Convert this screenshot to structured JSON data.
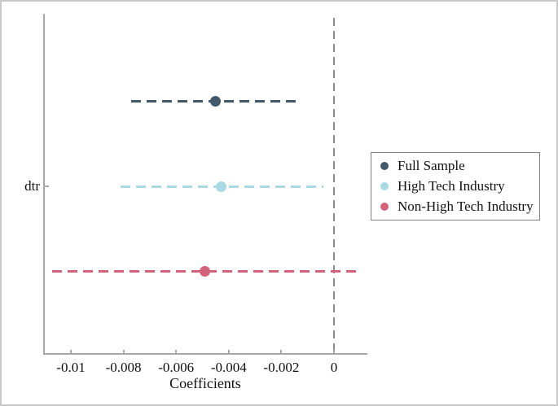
{
  "chart_data": {
    "type": "scatter",
    "subtype": "coefficient-plot",
    "title": "",
    "xlabel": "Coefficients",
    "ylabel": "",
    "y_categories": [
      "dtr"
    ],
    "xlim": [
      -0.0111,
      0.0013
    ],
    "xticks": [
      -0.01,
      -0.008,
      -0.006,
      -0.004,
      -0.002,
      0
    ],
    "xtick_labels": [
      "-0.01",
      "-0.008",
      "-0.006",
      "-0.004",
      "-0.002",
      "0"
    ],
    "reference_line_x": 0,
    "grid": false,
    "legend_position": "right-center",
    "series": [
      {
        "name": "Full Sample",
        "y_category": "dtr",
        "estimate": -0.0045,
        "ci_low": -0.0077,
        "ci_high": -0.0014,
        "color": "#41596b"
      },
      {
        "name": "High Tech Industry",
        "y_category": "dtr",
        "estimate": -0.0043,
        "ci_low": -0.0081,
        "ci_high": -0.0004,
        "color": "#a9dae3"
      },
      {
        "name": "Non-High Tech Industry",
        "y_category": "dtr",
        "estimate": -0.0049,
        "ci_low": -0.0107,
        "ci_high": 0.0009,
        "color": "#d2637a"
      }
    ]
  },
  "axis": {
    "x_label": "Coefficients",
    "y_tick_label": "dtr"
  },
  "colors": {
    "axis_line": "#a8a8a8",
    "reference_line": "#8d8d8d",
    "text": "#111111",
    "legend_border": "#808080",
    "figure_border": "#c9c9c9",
    "background": "#ffffff"
  }
}
